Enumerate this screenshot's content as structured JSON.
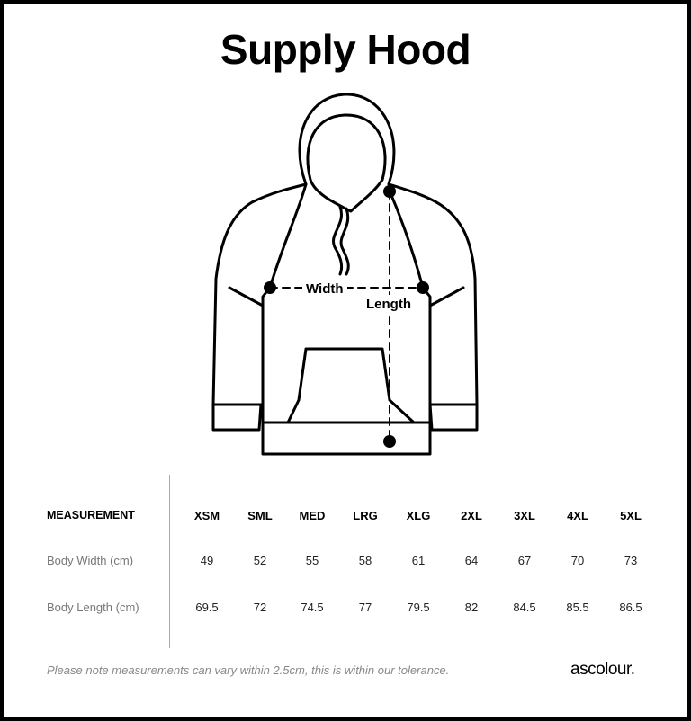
{
  "title": "Supply Hood",
  "diagram": {
    "width_label": "Width",
    "length_label": "Length"
  },
  "table": {
    "header_label": "MEASUREMENT",
    "sizes": [
      "XSM",
      "SML",
      "MED",
      "LRG",
      "XLG",
      "2XL",
      "3XL",
      "4XL",
      "5XL"
    ],
    "rows": [
      {
        "label": "Body Width (cm)",
        "values": [
          "49",
          "52",
          "55",
          "58",
          "61",
          "64",
          "67",
          "70",
          "73"
        ]
      },
      {
        "label": "Body Length (cm)",
        "values": [
          "69.5",
          "72",
          "74.5",
          "77",
          "79.5",
          "82",
          "84.5",
          "85.5",
          "86.5"
        ]
      }
    ]
  },
  "footer": {
    "note": "Please note measurements can vary within 2.5cm, this is within our tolerance.",
    "brand": "ascolour."
  }
}
